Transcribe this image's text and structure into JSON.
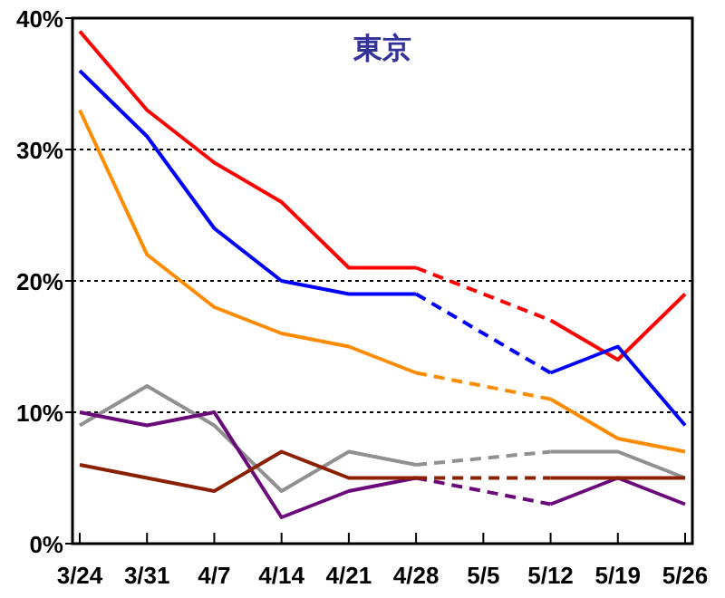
{
  "chart_data": {
    "type": "line",
    "title": "東京",
    "categories": [
      "3/24",
      "3/31",
      "4/7",
      "4/14",
      "4/21",
      "4/28",
      "5/5",
      "5/12",
      "5/19",
      "5/26"
    ],
    "series": [
      {
        "color": "#ff0000",
        "values": [
          39,
          33,
          29,
          26,
          21,
          21,
          null,
          17,
          14,
          19
        ]
      },
      {
        "color": "#0000ff",
        "values": [
          36,
          31,
          24,
          20,
          19,
          19,
          null,
          13,
          15,
          9
        ]
      },
      {
        "color": "#ff8c00",
        "values": [
          33,
          22,
          18,
          16,
          15,
          13,
          null,
          11,
          8,
          7
        ]
      },
      {
        "color": "#909090",
        "values": [
          9,
          12,
          9,
          4,
          7,
          6,
          null,
          7,
          7,
          5
        ]
      },
      {
        "color": "#6a0a7a",
        "values": [
          10,
          9,
          10,
          2,
          4,
          5,
          null,
          3,
          5,
          3
        ]
      },
      {
        "color": "#8b2000",
        "values": [
          6,
          5,
          4,
          7,
          5,
          5,
          null,
          5,
          5,
          5
        ]
      }
    ],
    "ylim": [
      0,
      40
    ],
    "yticks": [
      {
        "value": 0,
        "label": "0%"
      },
      {
        "value": 10,
        "label": "10%"
      },
      {
        "value": 20,
        "label": "20%"
      },
      {
        "value": 30,
        "label": "30%"
      },
      {
        "value": 40,
        "label": "40%"
      }
    ],
    "grid": "y",
    "marker": "none",
    "line_style": "solid"
  }
}
